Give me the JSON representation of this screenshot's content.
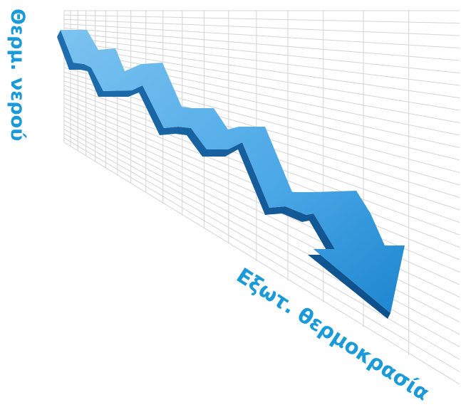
{
  "labels": {
    "y_axis": "Θερμ. νερού",
    "x_axis": "Εξωτ. θερμοκρασία"
  }
}
